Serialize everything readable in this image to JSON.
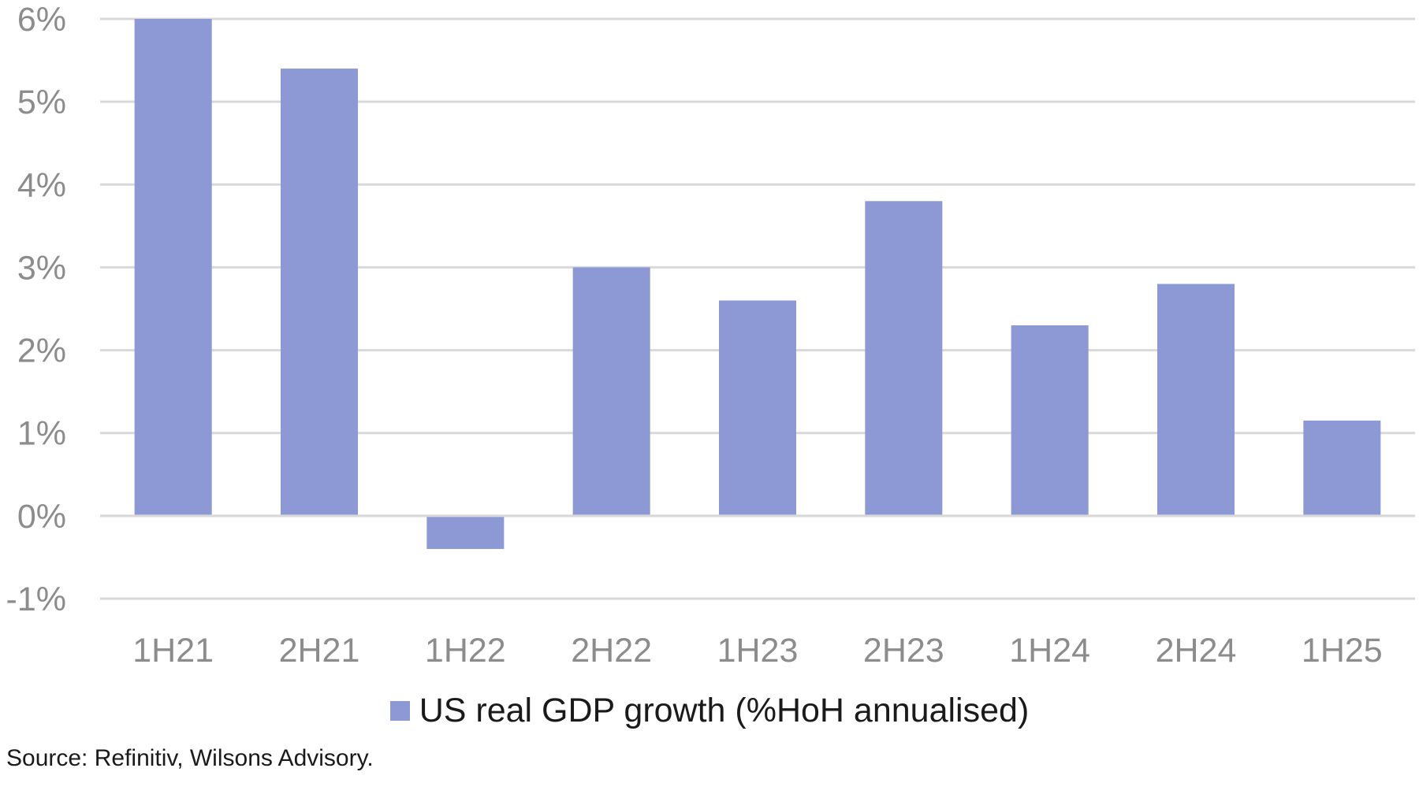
{
  "chart_data": {
    "type": "bar",
    "categories": [
      "1H21",
      "2H21",
      "1H22",
      "2H22",
      "1H23",
      "2H23",
      "1H24",
      "2H24",
      "1H25"
    ],
    "series": [
      {
        "name": "US real GDP growth (%HoH annualised)",
        "values": [
          6.0,
          5.4,
          -0.4,
          3.0,
          2.6,
          3.8,
          2.3,
          2.8,
          1.15
        ],
        "color": "#8d99d5"
      }
    ],
    "ylim": [
      -1,
      6
    ],
    "yticks": [
      6,
      5,
      4,
      3,
      2,
      1,
      0,
      -1
    ],
    "ytick_labels": [
      "6%",
      "5%",
      "4%",
      "3%",
      "2%",
      "1%",
      "0%",
      "-1%"
    ],
    "grid": true,
    "legend": "bottom",
    "gridline_color": "#d9d9d9"
  },
  "source_note": "Source: Refinitiv, Wilsons Advisory."
}
